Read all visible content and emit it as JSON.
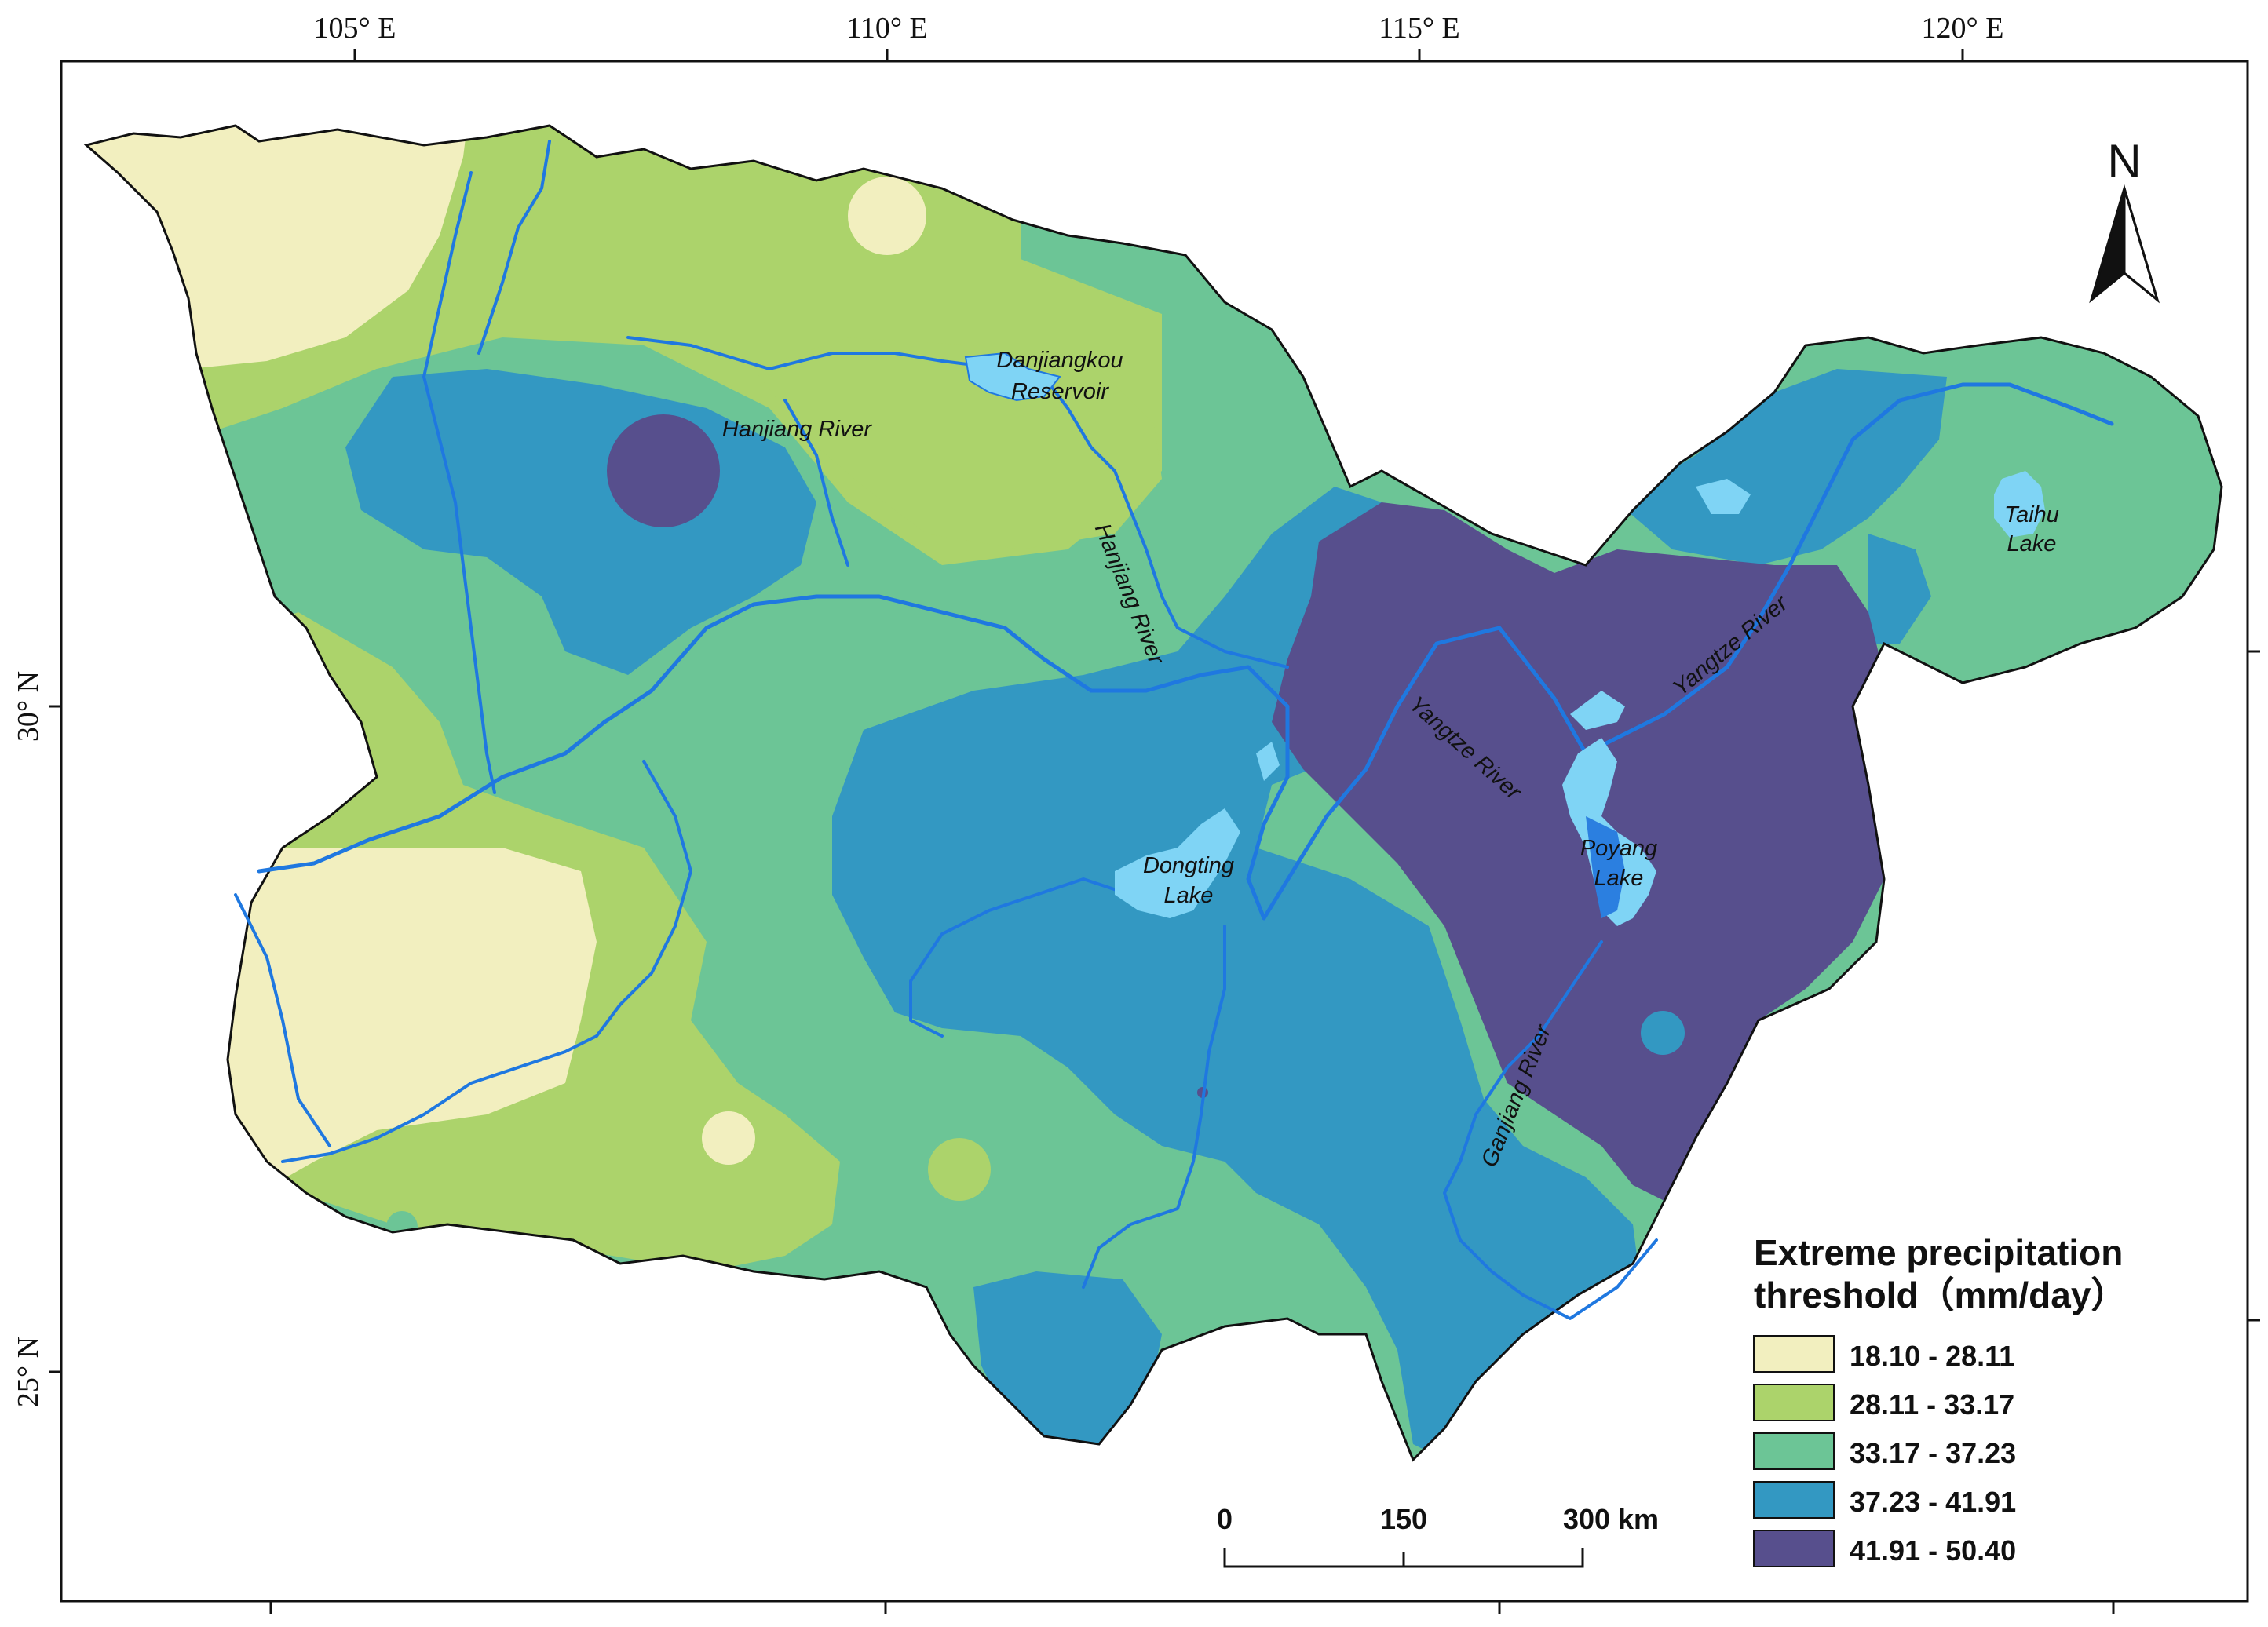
{
  "graticule": {
    "top_labels": [
      "105° E",
      "110° E",
      "115° E",
      "120° E"
    ],
    "left_labels": [
      "30° N",
      "25° N"
    ]
  },
  "legend": {
    "title_line1": "Extreme precipitation",
    "title_line2": "threshold（mm/day）",
    "classes": [
      {
        "label": "18.10 - 28.11",
        "color": "#f2efbf"
      },
      {
        "label": "28.11 - 33.17",
        "color": "#acd36b"
      },
      {
        "label": "33.17 - 37.23",
        "color": "#6cc596"
      },
      {
        "label": "37.23 - 41.91",
        "color": "#3398c2"
      },
      {
        "label": "41.91 - 50.40",
        "color": "#574f8d"
      }
    ]
  },
  "scale_bar": {
    "labels": [
      "0",
      "150",
      "300 km"
    ]
  },
  "north_arrow": {
    "label": "N"
  },
  "features": {
    "danjiangkou": [
      "Danjiangkou",
      "Reservoir"
    ],
    "hanjiang_upper": "Hanjiang River",
    "hanjiang_lower": "Hanjiang River",
    "dongting": [
      "Dongting",
      "Lake"
    ],
    "poyang": [
      "Poyang",
      "Lake"
    ],
    "yangtze_west": "Yangtze River",
    "yangtze_east": "Yangtze River",
    "taihu": [
      "Taihu",
      "Lake"
    ],
    "ganjiang": "Ganjiang River"
  },
  "colors": {
    "river": "#1f78e0",
    "lake": "#7fd4f5",
    "lake_deep": "#2b7fe0",
    "outline": "#111111"
  }
}
